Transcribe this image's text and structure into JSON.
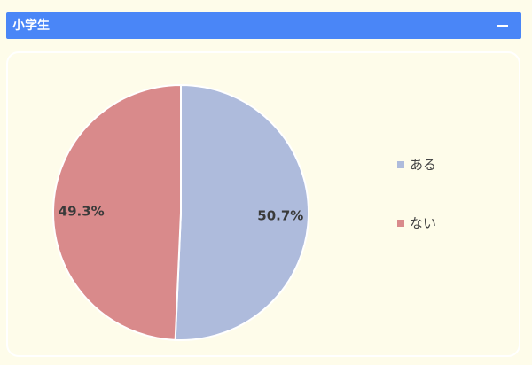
{
  "panel": {
    "title": "小学生",
    "collapse_icon": "minus-icon"
  },
  "colors": {
    "header": "#4a86f7",
    "background": "#fefcea",
    "series_aru": "#aebbdc",
    "series_nai": "#d98a8b"
  },
  "chart_data": {
    "type": "pie",
    "categories": [
      "ある",
      "ない"
    ],
    "values": [
      50.7,
      49.3
    ],
    "labels": [
      "50.7%",
      "49.3%"
    ],
    "colors": [
      "#aebbdc",
      "#d98a8b"
    ],
    "legend_position": "right",
    "start": "top, clockwise"
  }
}
